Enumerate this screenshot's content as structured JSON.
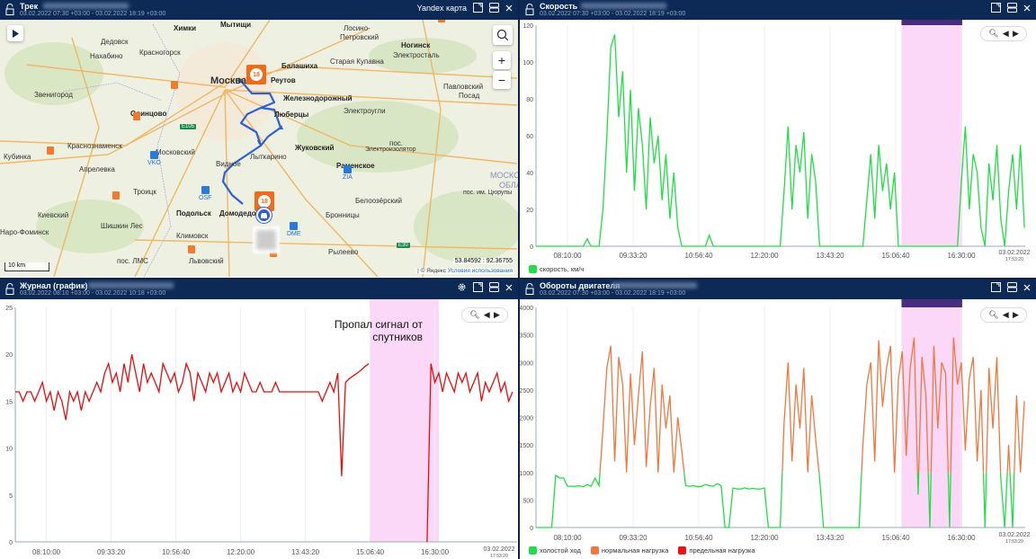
{
  "panels": {
    "track": {
      "title": "Трек",
      "period": "03.02.2022 07:30 +03:00 - 03.02.2022 18:19 +03:00",
      "map_provider": "Yandex карта"
    },
    "speed": {
      "title": "Скорость",
      "period": "03.02.2022 07:30 +03:00 - 03.02.2022 18:19 +03:00"
    },
    "journal": {
      "title": "Журнал (график)",
      "period": "03.02.2022 08:10 +03:00 - 03.02.2022 10:18 +03:00",
      "annotation": "Пропал сигнал от спутников"
    },
    "rpm": {
      "title": "Обороты двигателя",
      "period": "03.02.2022 07:30 +03:00 - 03.02.2022 18:19 +03:00"
    }
  },
  "map": {
    "labels": [
      "Химки",
      "Мытищи",
      "Лосино-",
      "Петровский",
      "Ногинск",
      "Электросталь",
      "Дедовск",
      "Нахабино",
      "Красногорск",
      "Москва",
      "Балашиха",
      "Старая Купавна",
      "Реутов",
      "Железнодорожный",
      "Электроугли",
      "Павловский",
      "Посад",
      "Звенигород",
      "Одинцово",
      "Люберцы",
      "Жуковский",
      "Краснознаменск",
      "Кубинка",
      "Московский",
      "Лыткарино",
      "Апрелевка",
      "Видное",
      "Раменское",
      "пос.",
      "Электроизолятор",
      "Троицк",
      "Белоозёрский",
      "Киевский",
      "Подольск",
      "Домодедово",
      "Бронницы",
      "Наро-Фоминск",
      "Шишкин Лес",
      "Климовск",
      "пос. ЛМС",
      "Львовский",
      "Рылеево",
      "МОСКО",
      "ОБЛА",
      "пос. им. Цюрупы"
    ],
    "airports": [
      "VKO",
      "OSF",
      "ZIA",
      "DME"
    ],
    "highways": [
      "E105",
      "E30"
    ],
    "marker_count": "18",
    "scale": "10 km",
    "coords": "53.84592 : 92.36755",
    "copyright": "| © Яндекс",
    "terms_link": "Условия использования",
    "zoom_in": "+",
    "zoom_out": "−"
  },
  "chart_data": [
    {
      "id": "speed",
      "type": "line",
      "title": "Скорость",
      "x_start": "07:30",
      "step_min": 5,
      "ylim": [
        0,
        120
      ],
      "yticks": [
        "0",
        "20",
        "40",
        "60",
        "80",
        "100",
        "120"
      ],
      "xticks": [
        "08:10:00",
        "09:33:20",
        "10:56:40",
        "12:20:00",
        "13:43:20",
        "15:06:40",
        "16:30:00"
      ],
      "x_end_label": [
        "03.02.2022",
        "17:53:20"
      ],
      "highlight": [
        "15:14",
        "16:31"
      ],
      "series": [
        {
          "name": "скорость, км/ч",
          "color": "#22dd44",
          "values": [
            0,
            0,
            0,
            0,
            0,
            0,
            0,
            0,
            0,
            0,
            0,
            0,
            0,
            4,
            0,
            0,
            0,
            20,
            60,
            108,
            115,
            70,
            95,
            40,
            85,
            30,
            75,
            55,
            20,
            70,
            45,
            60,
            25,
            50,
            15,
            40,
            10,
            0,
            0,
            0,
            0,
            0,
            0,
            0,
            6,
            0,
            0,
            0,
            0,
            0,
            0,
            0,
            0,
            0,
            0,
            0,
            0,
            0,
            0,
            0,
            0,
            0,
            0,
            30,
            65,
            20,
            55,
            40,
            62,
            15,
            50,
            35,
            0,
            0,
            0,
            0,
            0,
            0,
            0,
            0,
            0,
            0,
            0,
            0,
            25,
            50,
            15,
            55,
            30,
            45,
            20,
            40,
            0,
            0,
            0,
            0,
            0,
            0,
            0,
            0,
            0,
            0,
            0,
            0,
            0,
            0,
            0,
            0,
            35,
            65,
            20,
            50,
            40,
            10,
            0,
            45,
            25,
            55,
            15,
            0,
            30,
            50,
            20,
            55,
            10
          ]
        }
      ]
    },
    {
      "id": "journal",
      "type": "line",
      "title": "Журнал (график)",
      "x_start": "07:30",
      "step_min": 5,
      "ylim": [
        0,
        25
      ],
      "yticks": [
        "0",
        "5",
        "10",
        "15",
        "20",
        "25"
      ],
      "xticks": [
        "08:10:00",
        "09:33:20",
        "10:56:40",
        "12:20:00",
        "13:43:20",
        "15:06:40",
        "16:30:00"
      ],
      "x_end_label": [
        "03.02.2022",
        "17:53:20"
      ],
      "highlight": [
        "15:06",
        "16:35"
      ],
      "series": [
        {
          "name": "журнал",
          "color": "#e01010",
          "values": [
            16,
            16,
            15,
            16,
            16,
            15,
            16,
            17,
            15,
            16,
            14,
            16,
            15,
            13,
            16,
            15,
            16,
            14,
            16,
            15,
            16,
            17,
            16,
            18,
            19,
            17,
            18,
            16,
            19,
            17,
            20,
            18,
            16,
            19,
            17,
            18,
            17,
            16,
            19,
            18,
            17,
            18,
            16,
            17,
            19,
            18,
            15,
            18,
            17,
            16,
            18,
            17,
            18,
            16,
            17,
            18,
            16,
            17,
            16,
            18,
            17,
            16,
            16,
            17,
            16,
            16,
            16,
            17,
            16,
            16,
            16,
            16,
            16,
            16,
            16,
            16,
            16,
            16,
            16,
            15,
            16,
            17,
            16,
            18,
            7,
            17,
            17.4,
            17.7,
            18,
            18.3,
            18.7,
            19,
            null,
            null,
            null,
            null,
            null,
            null,
            null,
            null,
            null,
            null,
            null,
            null,
            null,
            null,
            0,
            19,
            17,
            18,
            16,
            18,
            17,
            16,
            18,
            17,
            18,
            16,
            17,
            18,
            15,
            17,
            16,
            17,
            18,
            16,
            17,
            15,
            16
          ]
        }
      ]
    },
    {
      "id": "rpm",
      "type": "line",
      "title": "Обороты двигателя",
      "x_start": "07:30",
      "step_min": 5,
      "ylim": [
        0,
        4000
      ],
      "yticks": [
        "0",
        "500",
        "1000",
        "1500",
        "2000",
        "2500",
        "3000",
        "3500",
        "4000"
      ],
      "xticks": [
        "08:10:00",
        "09:33:20",
        "10:56:40",
        "12:20:00",
        "13:43:20",
        "15:06:40",
        "16:30:00"
      ],
      "x_end_label": [
        "03.02.2022",
        "17:53:20"
      ],
      "highlight": [
        "15:14",
        "16:31"
      ],
      "thresholds": {
        "idle_max": 1000
      },
      "legend": [
        {
          "name": "холостой ход",
          "color": "#22dd44"
        },
        {
          "name": "нормальная нагрузка",
          "color": "#f07840"
        },
        {
          "name": "предельная нагрузка",
          "color": "#ee1111"
        }
      ],
      "series": [
        {
          "name": "обороты",
          "values": [
            0,
            0,
            0,
            0,
            0,
            950,
            900,
            900,
            750,
            750,
            750,
            760,
            740,
            780,
            750,
            900,
            760,
            1800,
            2900,
            3300,
            1200,
            3100,
            2600,
            1000,
            2800,
            1500,
            2400,
            3200,
            1100,
            2200,
            2900,
            1000,
            2600,
            1800,
            2400,
            1000,
            2000,
            1400,
            760,
            750,
            760,
            740,
            750,
            780,
            760,
            750,
            800,
            760,
            0,
            0,
            720,
            700,
            700,
            720,
            700,
            710,
            700,
            700,
            720,
            0,
            0,
            0,
            0,
            1900,
            3000,
            1200,
            2600,
            1800,
            2900,
            1000,
            2400,
            1600,
            900,
            0,
            0,
            0,
            0,
            0,
            0,
            0,
            0,
            0,
            0,
            1500,
            2600,
            3000,
            1200,
            3400,
            2200,
            2900,
            3300,
            1000,
            2700,
            3200,
            1300,
            2900,
            3450,
            600,
            3100,
            2400,
            0,
            3300,
            1800,
            3000,
            2800,
            0,
            3450,
            2600,
            3000,
            1400,
            2700,
            3100,
            1200,
            2500,
            0,
            2900,
            1800,
            3100,
            900,
            0,
            1500,
            0,
            2400,
            1000,
            2300
          ]
        }
      ]
    }
  ]
}
